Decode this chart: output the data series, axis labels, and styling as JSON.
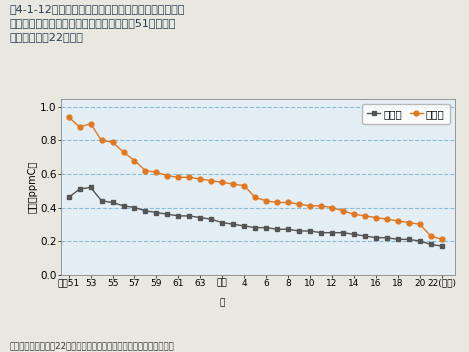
{
  "title": "図4-1-12　非メタン炭化水素の午前６〜９時における\n　　　　　年平均値の経年変化推移（昭和51年度〜平\n　　　　　成22年度）",
  "ylabel": "濃度（ppmC）",
  "source": "資料：環境省「平成22年度大気汚染状況について（報道発表資料）」",
  "legend_labels": [
    "一般局",
    "自排局"
  ],
  "line_ippan_color": "#555555",
  "line_jihan_color": "#E07820",
  "grid_color": "#7EB8D4",
  "bg_color": "#E4EEF5",
  "fig_bg_color": "#E8E8E0",
  "years_x": [
    1976,
    1977,
    1978,
    1979,
    1980,
    1981,
    1982,
    1983,
    1984,
    1985,
    1986,
    1987,
    1988,
    1989,
    1990,
    1991,
    1992,
    1993,
    1994,
    1995,
    1996,
    1997,
    1998,
    1999,
    2000,
    2001,
    2002,
    2003,
    2004,
    2005,
    2006,
    2007,
    2008,
    2009,
    2010
  ],
  "ippan_values": [
    0.46,
    0.51,
    0.52,
    0.44,
    0.43,
    0.41,
    0.4,
    0.38,
    0.37,
    0.36,
    0.35,
    0.35,
    0.34,
    0.33,
    0.31,
    0.3,
    0.29,
    0.28,
    0.28,
    0.27,
    0.27,
    0.26,
    0.26,
    0.25,
    0.25,
    0.25,
    0.24,
    0.23,
    0.22,
    0.22,
    0.21,
    0.21,
    0.2,
    0.18,
    0.17
  ],
  "jihan_values": [
    0.94,
    0.88,
    0.9,
    0.8,
    0.79,
    0.73,
    0.68,
    0.62,
    0.61,
    0.59,
    0.58,
    0.58,
    0.57,
    0.56,
    0.55,
    0.54,
    0.53,
    0.46,
    0.44,
    0.43,
    0.43,
    0.42,
    0.41,
    0.41,
    0.4,
    0.38,
    0.36,
    0.35,
    0.34,
    0.33,
    0.32,
    0.31,
    0.3,
    0.23,
    0.21
  ],
  "xtick_positions": [
    1976,
    1978,
    1980,
    1982,
    1984,
    1986,
    1988,
    1990,
    1992,
    1994,
    1996,
    1998,
    2000,
    2002,
    2004,
    2006,
    2008,
    2010
  ],
  "xtick_labels": [
    "昭和51",
    "53",
    "55",
    "57",
    "59",
    "61",
    "63",
    "平成",
    "4",
    "6",
    "8",
    "10",
    "12",
    "14",
    "16",
    "18",
    "20",
    "22(年度)"
  ],
  "heiseinen_label": "２",
  "ytick_labels": [
    "0.0",
    "0.2",
    "0.4",
    "0.6",
    "0.8",
    "1.0"
  ]
}
